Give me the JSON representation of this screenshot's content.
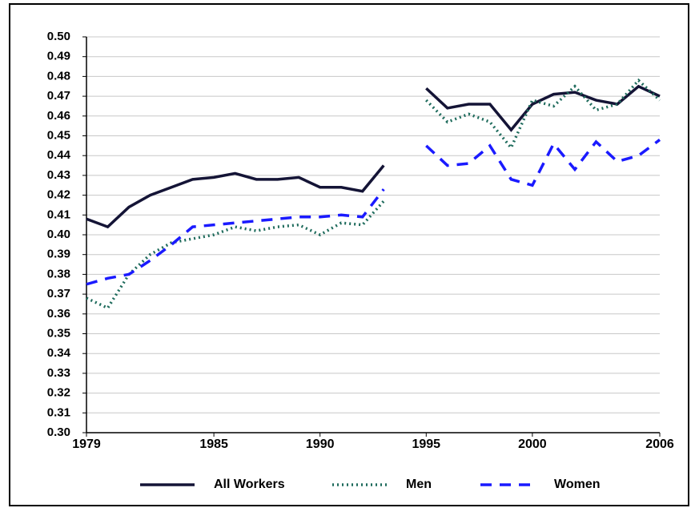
{
  "chart_data": {
    "type": "line",
    "x": [
      1979,
      1980,
      1981,
      1982,
      1983,
      1984,
      1985,
      1986,
      1987,
      1988,
      1989,
      1990,
      1991,
      1992,
      1993,
      1994,
      1995,
      1996,
      1997,
      1998,
      1999,
      2000,
      2001,
      2002,
      2003,
      2004,
      2005,
      2006
    ],
    "series": [
      {
        "name": "All Workers",
        "color": "#141436",
        "dash": "solid",
        "values": [
          0.408,
          0.404,
          0.414,
          0.42,
          0.424,
          0.428,
          0.429,
          0.431,
          0.428,
          0.428,
          0.429,
          0.424,
          0.424,
          0.422,
          0.435,
          null,
          0.474,
          0.464,
          0.466,
          0.466,
          0.453,
          0.466,
          0.471,
          0.472,
          0.468,
          0.466,
          0.475,
          0.47
        ]
      },
      {
        "name": "Men",
        "color": "#1e6b5c",
        "dash": "dotted",
        "values": [
          0.368,
          0.363,
          0.38,
          0.39,
          0.396,
          0.398,
          0.4,
          0.404,
          0.402,
          0.404,
          0.405,
          0.4,
          0.406,
          0.405,
          0.417,
          null,
          0.468,
          0.457,
          0.461,
          0.457,
          0.444,
          0.468,
          0.465,
          0.475,
          0.463,
          0.466,
          0.478,
          0.468
        ]
      },
      {
        "name": "Women",
        "color": "#1a1aff",
        "dash": "dashed",
        "values": [
          0.375,
          0.378,
          0.38,
          0.387,
          0.395,
          0.404,
          0.405,
          0.406,
          0.407,
          0.408,
          0.409,
          0.409,
          0.41,
          0.409,
          0.423,
          null,
          0.445,
          0.435,
          0.436,
          0.445,
          0.428,
          0.425,
          0.446,
          0.433,
          0.447,
          0.437,
          0.44,
          0.448
        ]
      }
    ],
    "xlim": [
      1979,
      2006
    ],
    "xticks": [
      1979,
      1985,
      1990,
      1995,
      2000,
      2006
    ],
    "ylim": [
      0.3,
      0.5
    ],
    "yticks": [
      {
        "value": 0.3,
        "label": "0.30"
      },
      0.31,
      0.32,
      0.33,
      0.34,
      0.35,
      0.36,
      0.37,
      0.38,
      0.39,
      {
        "value": 0.4,
        "label": "0.40"
      },
      0.41,
      0.42,
      0.43,
      0.44,
      0.45,
      0.46,
      0.47,
      0.48,
      0.49,
      {
        "value": 0.5,
        "label": "0.50"
      }
    ],
    "grid": true
  }
}
